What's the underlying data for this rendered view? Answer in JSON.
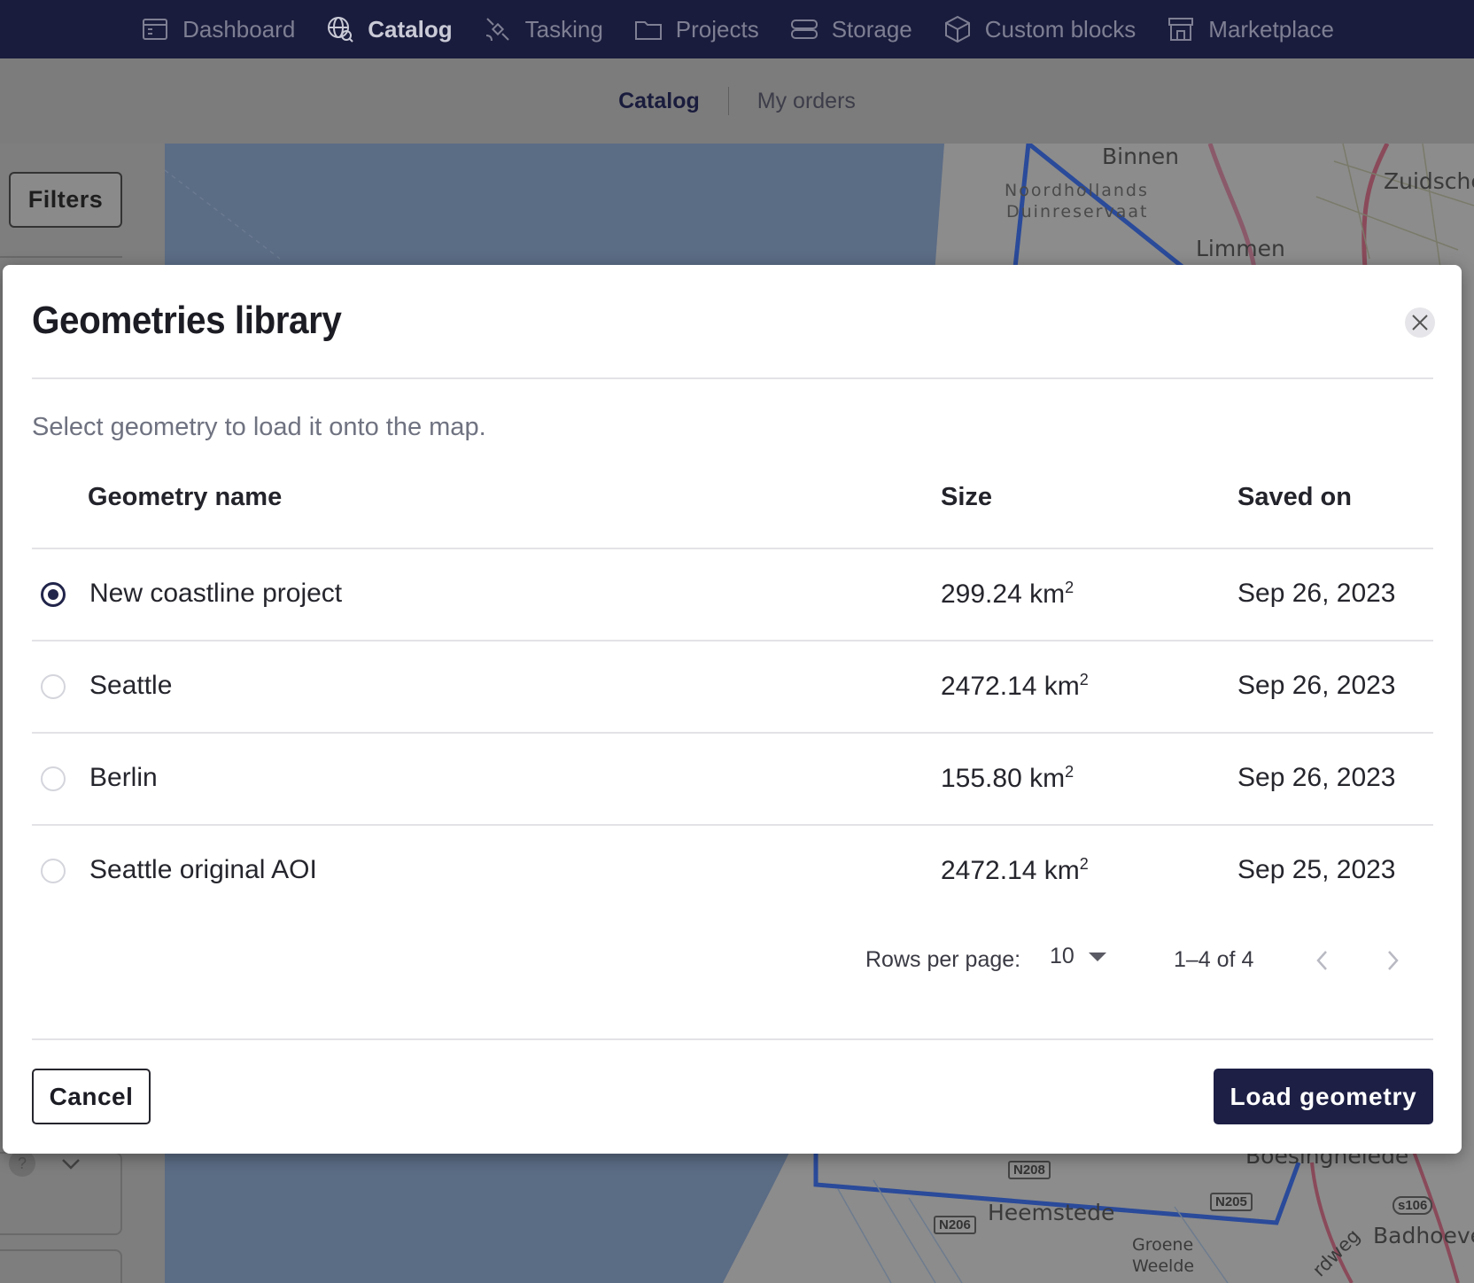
{
  "topnav": {
    "items": [
      {
        "label": "Dashboard",
        "icon": "dashboard-icon"
      },
      {
        "label": "Catalog",
        "icon": "globe-search-icon",
        "active": true
      },
      {
        "label": "Tasking",
        "icon": "satellite-icon"
      },
      {
        "label": "Projects",
        "icon": "folder-icon"
      },
      {
        "label": "Storage",
        "icon": "storage-icon"
      },
      {
        "label": "Custom blocks",
        "icon": "cube-icon"
      },
      {
        "label": "Marketplace",
        "icon": "store-icon"
      }
    ]
  },
  "subnav": {
    "tabs": [
      {
        "label": "Catalog",
        "active": true
      },
      {
        "label": "My orders"
      }
    ]
  },
  "sidebar": {
    "filters_label": "Filters",
    "help_label": "?"
  },
  "map": {
    "labels": {
      "binnen": "Binnen",
      "zuidsche": "Zuidsche",
      "noordhollands": "Noordhollands",
      "duinreservaat": "Duinreservaat",
      "limmen": "Limmen",
      "heemstede": "Heemstede",
      "badhoeve": "Badhoeve",
      "groene": "Groene",
      "weelde": "Weelde",
      "boesinghelede": "Boesinghelede",
      "rdweg": "rdweg"
    },
    "roads": {
      "n208": "N208",
      "n206": "N206",
      "n205": "N205",
      "s106": "s106"
    },
    "colors": {
      "water": "#5b6c85",
      "land": "#8c8c8c",
      "aoi": "#2a4a9a"
    }
  },
  "modal": {
    "title": "Geometries library",
    "subtitle": "Select geometry to load it onto the map.",
    "columns": {
      "name": "Geometry name",
      "size": "Size",
      "saved": "Saved on"
    },
    "rows": [
      {
        "name": "New coastline project",
        "size": "299.24 km",
        "unit_sup": "2",
        "saved": "Sep 26, 2023",
        "selected": true
      },
      {
        "name": "Seattle",
        "size": "2472.14 km",
        "unit_sup": "2",
        "saved": "Sep 26, 2023",
        "selected": false
      },
      {
        "name": "Berlin",
        "size": "155.80 km",
        "unit_sup": "2",
        "saved": "Sep 26, 2023",
        "selected": false
      },
      {
        "name": "Seattle original AOI",
        "size": "2472.14 km",
        "unit_sup": "2",
        "saved": "Sep 25, 2023",
        "selected": false
      }
    ],
    "pagination": {
      "rows_per_page_label": "Rows per page:",
      "rows_per_page_value": "10",
      "range": "1–4 of 4"
    },
    "cancel_label": "Cancel",
    "load_label": "Load geometry",
    "accent": "#1d1f45"
  }
}
